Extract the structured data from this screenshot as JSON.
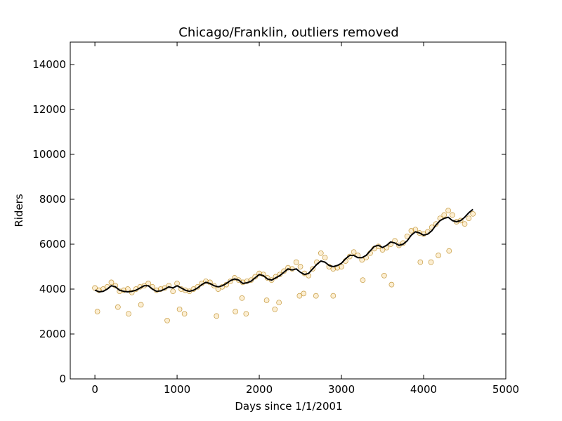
{
  "chart_data": {
    "type": "scatter",
    "title": "Chicago/Franklin, outliers removed",
    "xlabel": "Days since 1/1/2001",
    "ylabel": "Riders",
    "xlim": [
      -300,
      5000
    ],
    "ylim": [
      0,
      15000
    ],
    "x_ticks": [
      0,
      1000,
      2000,
      3000,
      4000,
      5000
    ],
    "y_ticks": [
      0,
      2000,
      4000,
      6000,
      8000,
      10000,
      12000,
      14000
    ],
    "grid": false,
    "legend": "none",
    "colors": {
      "scatter_fill": "#f0b030",
      "scatter_edge": "#b07800",
      "trend_line": "#000000"
    },
    "series": [
      {
        "kind": "scatter",
        "x": [
          0,
          50,
          100,
          150,
          200,
          250,
          300,
          350,
          400,
          450,
          500,
          550,
          600,
          650,
          700,
          750,
          800,
          850,
          900,
          950,
          1000,
          1050,
          1100,
          1150,
          1200,
          1250,
          1300,
          1350,
          1400,
          1450,
          1500,
          1550,
          1600,
          1650,
          1700,
          1750,
          1800,
          1850,
          1900,
          1950,
          2000,
          2050,
          2100,
          2150,
          2200,
          2250,
          2300,
          2350,
          2400,
          2450,
          2500,
          2550,
          2600,
          2650,
          2700,
          2750,
          2800,
          2850,
          2900,
          2950,
          3000,
          3050,
          3100,
          3150,
          3200,
          3250,
          3300,
          3350,
          3400,
          3450,
          3500,
          3550,
          3600,
          3650,
          3700,
          3750,
          3800,
          3850,
          3900,
          3950,
          4000,
          4050,
          4100,
          4150,
          4200,
          4250,
          4300,
          4350,
          4400,
          4450,
          4500,
          4550,
          4600,
          30,
          280,
          410,
          560,
          880,
          1030,
          1090,
          1480,
          1710,
          1790,
          1840,
          2090,
          2190,
          2240,
          2490,
          2540,
          2690,
          2900,
          3260,
          3520,
          3610,
          3960,
          4090,
          4180,
          4310
        ],
        "y": [
          4050,
          3950,
          4000,
          4100,
          4300,
          4150,
          3900,
          3950,
          4000,
          3850,
          4000,
          4100,
          4150,
          4250,
          4100,
          3950,
          4000,
          4050,
          4150,
          3900,
          4250,
          4000,
          3950,
          3900,
          4000,
          4100,
          4250,
          4350,
          4300,
          4150,
          4000,
          4100,
          4200,
          4350,
          4500,
          4400,
          4300,
          4350,
          4400,
          4550,
          4700,
          4650,
          4500,
          4400,
          4550,
          4650,
          4800,
          4950,
          4900,
          5200,
          5000,
          4700,
          4600,
          4900,
          5200,
          5600,
          5400,
          5000,
          4900,
          4950,
          5000,
          5250,
          5450,
          5650,
          5500,
          5300,
          5400,
          5600,
          5800,
          5900,
          5750,
          5850,
          6000,
          6150,
          5950,
          6050,
          6350,
          6600,
          6650,
          6500,
          6450,
          6550,
          6750,
          6900,
          7150,
          7300,
          7500,
          7300,
          7000,
          7050,
          6900,
          7150,
          7350,
          3000,
          3200,
          2900,
          3300,
          2600,
          3100,
          2900,
          2800,
          3000,
          3600,
          2900,
          3500,
          3100,
          3400,
          3700,
          3800,
          3700,
          3700,
          4400,
          4600,
          4200,
          5200,
          5200,
          5500,
          5700
        ]
      },
      {
        "kind": "line",
        "x": [
          0,
          50,
          100,
          150,
          200,
          250,
          300,
          350,
          400,
          450,
          500,
          550,
          600,
          650,
          700,
          750,
          800,
          850,
          900,
          950,
          1000,
          1050,
          1100,
          1150,
          1200,
          1250,
          1300,
          1350,
          1400,
          1450,
          1500,
          1550,
          1600,
          1650,
          1700,
          1750,
          1800,
          1850,
          1900,
          1950,
          2000,
          2050,
          2100,
          2150,
          2200,
          2250,
          2300,
          2350,
          2400,
          2450,
          2500,
          2550,
          2600,
          2650,
          2700,
          2750,
          2800,
          2850,
          2900,
          2950,
          3000,
          3050,
          3100,
          3150,
          3200,
          3250,
          3300,
          3350,
          3400,
          3450,
          3500,
          3550,
          3600,
          3650,
          3700,
          3750,
          3800,
          3850,
          3900,
          3950,
          4000,
          4050,
          4100,
          4150,
          4200,
          4250,
          4300,
          4350,
          4400,
          4450,
          4500,
          4550,
          4600
        ],
        "y": [
          3950,
          3880,
          3900,
          4000,
          4150,
          4100,
          3950,
          3900,
          3880,
          3900,
          3950,
          4050,
          4150,
          4150,
          4000,
          3900,
          3920,
          4000,
          4100,
          4050,
          4150,
          4050,
          3950,
          3900,
          3950,
          4050,
          4200,
          4300,
          4250,
          4150,
          4100,
          4150,
          4250,
          4380,
          4450,
          4400,
          4250,
          4280,
          4350,
          4500,
          4650,
          4600,
          4450,
          4400,
          4500,
          4600,
          4750,
          4900,
          4850,
          4900,
          4750,
          4650,
          4700,
          4900,
          5100,
          5250,
          5200,
          5050,
          5000,
          5050,
          5150,
          5350,
          5500,
          5500,
          5400,
          5400,
          5500,
          5700,
          5900,
          5950,
          5850,
          5950,
          6100,
          6050,
          5950,
          6000,
          6150,
          6400,
          6550,
          6500,
          6400,
          6450,
          6600,
          6850,
          7050,
          7150,
          7200,
          7050,
          7000,
          7050,
          7200,
          7400,
          7550
        ]
      }
    ]
  }
}
